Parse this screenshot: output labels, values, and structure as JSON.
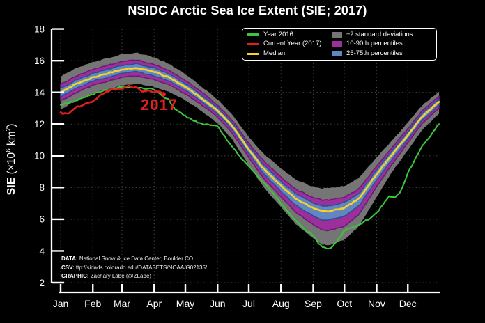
{
  "title": "NSIDC Arctic Sea Ice Extent (SIE; 2017)",
  "annotation_2017": "2017",
  "ylabel_parts": {
    "bold": "SIE",
    "rest1": " (×10",
    "sup1": "6",
    "rest2": " km",
    "sup2": "2",
    "rest3": ")"
  },
  "credits": [
    {
      "label": "DATA:",
      "text": " National Snow & Ice Data Center, Boulder CO"
    },
    {
      "label": "CSV:",
      "text": " ftp://sidads.colorado.edu/DATASETS/NOAA/G02135/"
    },
    {
      "label": "GRAPHIC:",
      "text": " Zachary Labe (@ZLabe)"
    }
  ],
  "colors": {
    "background": "#000000",
    "text": "#ffffff",
    "grid": "#484848",
    "axis": "#ffffff",
    "year2016": "#3cc53c",
    "year2017": "#e01f1f",
    "median": "#f7d325",
    "band_2std": "#757575",
    "band_1090": "#9c2f9c",
    "band_1090_edge": "#6c1a73",
    "band_2575": "#6286c2",
    "band_2575_edge": "#2e4d8e"
  },
  "legend": {
    "columns": [
      {
        "items": [
          {
            "label": "Year 2016",
            "swatch": "line",
            "color": "#3cc53c"
          },
          {
            "label": "Current Year (2017)",
            "swatch": "line",
            "color": "#e01f1f"
          },
          {
            "label": "Median",
            "swatch": "line",
            "color": "#f7d325"
          }
        ]
      },
      {
        "items": [
          {
            "label": "±2 standard deviations",
            "swatch": "patch",
            "color": "#757575"
          },
          {
            "label": "10-90th percentiles",
            "swatch": "patch",
            "color": "#9c2f9c"
          },
          {
            "label": "25-75th percentiles",
            "swatch": "patch",
            "color": "#6286c2"
          }
        ]
      }
    ]
  },
  "chart_data": {
    "type": "line",
    "title": "NSIDC Arctic Sea Ice Extent (SIE; 2017)",
    "xlabel": "",
    "ylabel": "SIE (×10⁶ km²)",
    "ylim": [
      2,
      18
    ],
    "yticks": [
      2,
      4,
      6,
      8,
      10,
      12,
      14,
      16,
      18
    ],
    "x_unit": "day_of_year",
    "month_labels": [
      "Jan",
      "Feb",
      "Mar",
      "Apr",
      "May",
      "Jun",
      "Jul",
      "Aug",
      "Sep",
      "Oct",
      "Nov",
      "Dec"
    ],
    "month_start_days": [
      1,
      32,
      60,
      91,
      121,
      152,
      182,
      213,
      244,
      274,
      305,
      335
    ],
    "grid": "dotted",
    "legend_position": "upper right",
    "bands": [
      {
        "name": "±2 standard deviations",
        "color": "#757575",
        "edge": "",
        "days": [
          1,
          15,
          32,
          46,
          60,
          74,
          91,
          105,
          121,
          135,
          152,
          166,
          182,
          196,
          213,
          227,
          244,
          253,
          258,
          266,
          274,
          288,
          305,
          319,
          335,
          349,
          365
        ],
        "upper": [
          15.0,
          15.5,
          15.9,
          16.15,
          16.4,
          16.5,
          16.2,
          15.8,
          15.15,
          14.45,
          13.55,
          12.6,
          11.2,
          10.15,
          9.2,
          8.5,
          8.05,
          7.95,
          7.95,
          8.03,
          8.1,
          8.6,
          9.9,
          10.9,
          12.1,
          13.2,
          14.05
        ],
        "lower": [
          12.9,
          13.45,
          13.95,
          14.2,
          14.45,
          14.55,
          14.35,
          14.05,
          13.5,
          12.9,
          12.05,
          11.05,
          9.4,
          8.05,
          6.75,
          5.7,
          4.8,
          4.4,
          4.35,
          4.5,
          4.7,
          5.55,
          7.4,
          8.9,
          10.35,
          11.65,
          12.65
        ]
      },
      {
        "name": "10-90th percentiles",
        "color": "#9c2f9c",
        "edge": "#6c1a73",
        "days": [
          1,
          15,
          32,
          46,
          60,
          74,
          91,
          105,
          121,
          135,
          152,
          166,
          182,
          196,
          213,
          227,
          244,
          253,
          258,
          266,
          274,
          288,
          305,
          319,
          335,
          349,
          365
        ],
        "upper": [
          14.5,
          15.0,
          15.45,
          15.7,
          15.95,
          16.05,
          15.75,
          15.4,
          14.75,
          14.1,
          13.2,
          12.25,
          10.8,
          9.7,
          8.65,
          7.9,
          7.35,
          7.2,
          7.2,
          7.28,
          7.4,
          7.9,
          9.35,
          10.45,
          11.7,
          12.85,
          13.75
        ],
        "lower": [
          13.45,
          13.95,
          14.45,
          14.7,
          14.95,
          15.05,
          14.8,
          14.5,
          13.9,
          13.3,
          12.45,
          11.45,
          9.9,
          8.6,
          7.4,
          6.45,
          5.65,
          5.3,
          5.3,
          5.42,
          5.55,
          6.3,
          8.05,
          9.4,
          10.8,
          12.05,
          13.0
        ]
      },
      {
        "name": "25-75th percentiles",
        "color": "#6286c2",
        "edge": "#2e4d8e",
        "days": [
          1,
          15,
          32,
          46,
          60,
          74,
          91,
          105,
          121,
          135,
          152,
          166,
          182,
          196,
          213,
          227,
          244,
          253,
          258,
          266,
          274,
          288,
          305,
          319,
          335,
          349,
          365
        ],
        "upper": [
          14.25,
          14.75,
          15.2,
          15.45,
          15.7,
          15.8,
          15.55,
          15.17,
          14.55,
          13.9,
          13.03,
          12.08,
          10.6,
          9.45,
          8.38,
          7.6,
          7.02,
          6.85,
          6.85,
          6.94,
          7.05,
          7.6,
          9.1,
          10.22,
          11.5,
          12.68,
          13.58
        ],
        "lower": [
          13.72,
          14.22,
          14.7,
          14.95,
          15.2,
          15.3,
          15.05,
          14.73,
          14.13,
          13.5,
          12.65,
          11.68,
          10.15,
          8.9,
          7.75,
          6.88,
          6.2,
          5.95,
          5.95,
          6.06,
          6.18,
          6.85,
          8.47,
          9.7,
          11.05,
          12.28,
          13.2
        ]
      }
    ],
    "series": [
      {
        "name": "Median",
        "color": "#f7d325",
        "width": 2.6,
        "end_marker": false,
        "days": [
          1,
          15,
          32,
          46,
          60,
          74,
          91,
          105,
          121,
          135,
          152,
          166,
          182,
          196,
          213,
          227,
          244,
          253,
          258,
          266,
          274,
          288,
          305,
          319,
          335,
          349,
          365
        ],
        "values": [
          14.0,
          14.5,
          14.95,
          15.2,
          15.45,
          15.55,
          15.3,
          14.95,
          14.35,
          13.7,
          12.85,
          11.9,
          10.4,
          9.2,
          8.1,
          7.3,
          6.7,
          6.5,
          6.5,
          6.6,
          6.7,
          7.3,
          8.85,
          10.0,
          11.3,
          12.5,
          13.4
        ]
      },
      {
        "name": "Year 2016",
        "color": "#3cc53c",
        "width": 2.1,
        "end_marker": false,
        "days": [
          1,
          15,
          32,
          46,
          60,
          74,
          91,
          100,
          105,
          110,
          121,
          127,
          135,
          144,
          152,
          160,
          166,
          174,
          182,
          189,
          196,
          203,
          213,
          220,
          227,
          235,
          244,
          249,
          253,
          258,
          262,
          266,
          270,
          274,
          282,
          288,
          297,
          305,
          312,
          317,
          322,
          328,
          335,
          342,
          349,
          357,
          365
        ],
        "values": [
          13.2,
          13.45,
          13.9,
          14.15,
          14.35,
          14.3,
          14.2,
          13.7,
          13.55,
          13.0,
          12.5,
          12.3,
          12.05,
          11.95,
          11.88,
          11.1,
          10.6,
          9.9,
          9.3,
          8.8,
          8.35,
          7.8,
          7.0,
          6.45,
          5.95,
          5.4,
          5.0,
          4.5,
          4.25,
          4.15,
          4.2,
          4.55,
          4.9,
          5.3,
          5.5,
          5.65,
          6.0,
          6.4,
          7.0,
          7.5,
          7.35,
          7.7,
          8.9,
          9.8,
          10.6,
          11.3,
          12.0
        ]
      },
      {
        "name": "Current Year (2017)",
        "color": "#e01f1f",
        "width": 2.6,
        "end_marker": true,
        "days": [
          1,
          8,
          15,
          22,
          32,
          40,
          46,
          52,
          60,
          66,
          74,
          80,
          86,
          91,
          95,
          100
        ],
        "values": [
          12.7,
          12.62,
          13.05,
          13.2,
          13.4,
          13.85,
          14.05,
          14.2,
          14.25,
          14.4,
          14.3,
          14.05,
          14.1,
          13.95,
          14.08,
          13.88
        ]
      }
    ]
  }
}
